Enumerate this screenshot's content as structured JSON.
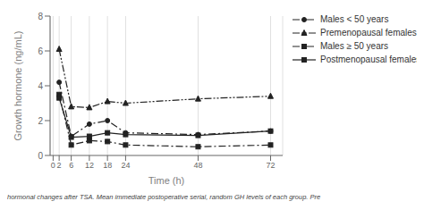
{
  "chart_data": {
    "type": "line",
    "x": [
      2,
      6,
      12,
      18,
      24,
      48,
      72
    ],
    "series": [
      {
        "name": "Males < 50 years",
        "values": [
          4.2,
          1.1,
          1.8,
          2.0,
          1.3,
          1.2,
          1.4
        ],
        "color": "#222222",
        "marker": "circle",
        "line_style": "dashdot"
      },
      {
        "name": "Premenopausal females",
        "values": [
          6.1,
          2.8,
          2.75,
          3.1,
          3.0,
          3.25,
          3.4
        ],
        "color": "#222222",
        "marker": "triangle",
        "line_style": "dashdotdot"
      },
      {
        "name": "Males ≥ 50 years",
        "values": [
          3.5,
          0.6,
          0.85,
          0.8,
          0.6,
          0.5,
          0.6
        ],
        "color": "#222222",
        "marker": "square",
        "line_style": "dashdot"
      },
      {
        "name": "Postmenopausal females",
        "values": [
          3.3,
          1.05,
          1.1,
          1.3,
          1.2,
          1.15,
          1.4
        ],
        "color": "#222222",
        "marker": "square",
        "line_style": "solid"
      }
    ],
    "x_label": "Time  (h)",
    "y_label": "Growth hormone (ng/mL)",
    "xlim": [
      -1,
      76
    ],
    "xticks": [
      0,
      2,
      6,
      12,
      18,
      24,
      48,
      72
    ],
    "ylim": [
      0,
      8
    ],
    "yticks": [
      0,
      2,
      4,
      6,
      8
    ],
    "grid": "x",
    "legend": "upper right",
    "annotations": [
      "hormonal changes after TSA. Mean immediate postoperative serial, random GH levels of each group. Pre"
    ]
  }
}
